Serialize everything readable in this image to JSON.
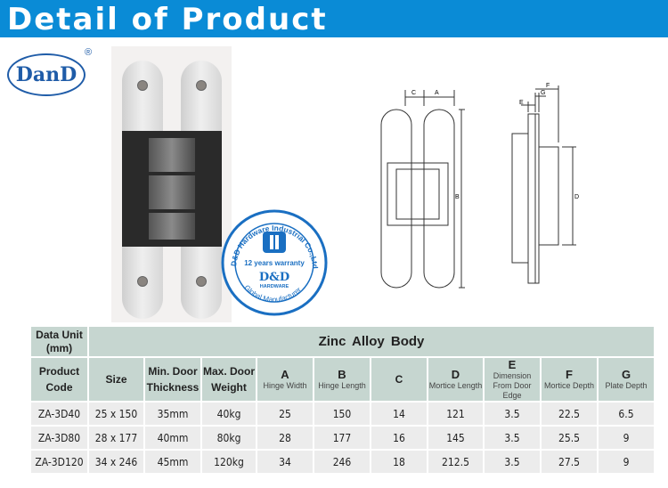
{
  "banner": {
    "title": "Detail of Product",
    "color": "#0a8bd6"
  },
  "logo": {
    "text": "DanD",
    "registered": "®"
  },
  "stamp": {
    "ring_text": "D&D Hardware Industrial Co.,Ltd",
    "warranty": "12 years warranty",
    "brand": "D&D",
    "sub": "HARDWARE",
    "bottom": "Global Manufacturer"
  },
  "diagram": {
    "labels": [
      "C",
      "A",
      "B",
      "G",
      "F",
      "E",
      "D"
    ]
  },
  "table": {
    "unit_label": "Data Unit (mm)",
    "group_title": "Zinc Alloy Body",
    "headers": [
      {
        "main": "Product Code",
        "sub": ""
      },
      {
        "main": "Size",
        "sub": ""
      },
      {
        "main": "Min. Door Thickness",
        "sub": ""
      },
      {
        "main": "Max. Door Weight",
        "sub": ""
      },
      {
        "main": "A",
        "sub": "Hinge Width"
      },
      {
        "main": "B",
        "sub": "Hinge Length"
      },
      {
        "main": "C",
        "sub": ""
      },
      {
        "main": "D",
        "sub": "Mortice Length"
      },
      {
        "main": "E",
        "sub": "Dimension From Door Edge"
      },
      {
        "main": "F",
        "sub": "Mortice Depth"
      },
      {
        "main": "G",
        "sub": "Plate Depth"
      }
    ],
    "rows": [
      [
        "ZA-3D40",
        "25 x 150",
        "35mm",
        "40kg",
        "25",
        "150",
        "14",
        "121",
        "3.5",
        "22.5",
        "6.5"
      ],
      [
        "ZA-3D80",
        "28 x 177",
        "40mm",
        "80kg",
        "28",
        "177",
        "16",
        "145",
        "3.5",
        "25.5",
        "9"
      ],
      [
        "ZA-3D120",
        "34 x 246",
        "45mm",
        "120kg",
        "34",
        "246",
        "18",
        "212.5",
        "3.5",
        "27.5",
        "9"
      ]
    ]
  }
}
